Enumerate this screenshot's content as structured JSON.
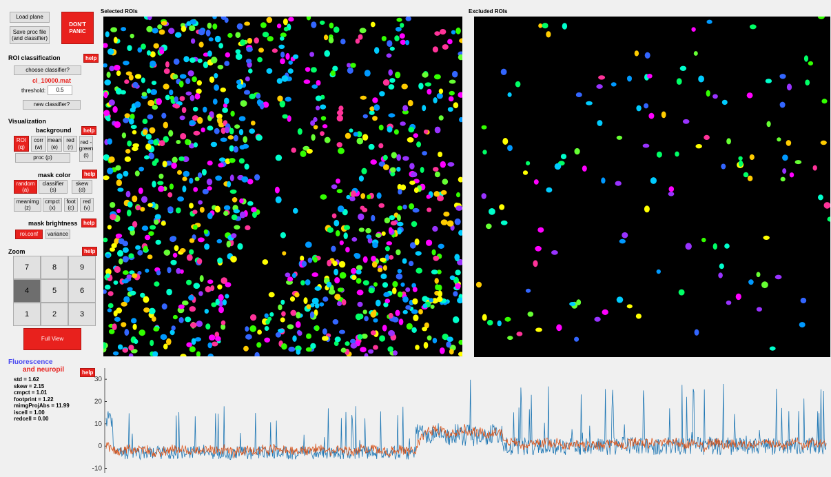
{
  "top_buttons": {
    "load_plane": "Load plane",
    "save_proc": "Save proc file\n(and classifier)",
    "dont_panic": "DON'T\nPANIC"
  },
  "roi_classification": {
    "title": "ROI classification",
    "help": "help",
    "choose_classifier": "choose classifier?",
    "classifier_file": "cl_10000.mat",
    "threshold_label": "threshold:",
    "threshold_value": "0.5",
    "new_classifier": "new classifier?"
  },
  "visualization": {
    "title": "Visualization",
    "background": {
      "title": "background",
      "help": "help",
      "buttons": [
        "ROI\n(q)",
        "corr\n(w)",
        "mean\n(e)",
        "red\n(r)",
        "red -\ngreen\n(t)",
        "proc (p)"
      ]
    },
    "mask_color": {
      "title": "mask color",
      "help": "help",
      "buttons": [
        "random\n(a)",
        "classifier\n(s)",
        "skew\n(d)",
        "meanimg\n(z)",
        "cmpct\n(x)",
        "foot\n(c)",
        "red\n(v)"
      ]
    },
    "mask_brightness": {
      "title": "mask brightness",
      "help": "help",
      "buttons": [
        "roi.conf",
        "variance"
      ]
    }
  },
  "zoom": {
    "title": "Zoom",
    "help": "help",
    "keys": [
      "7",
      "8",
      "9",
      "4",
      "5",
      "6",
      "1",
      "2",
      "3"
    ],
    "selected": "4",
    "full_view": "Full View"
  },
  "panels": {
    "selected_title": "Selected ROIs",
    "excluded_title": "Excluded ROIs"
  },
  "trace": {
    "title_line1": "Fluorescence",
    "title_line2": "and neuropil",
    "help": "help",
    "stats": [
      "std = 1.62",
      "skew = 2.15",
      "cmpct = 1.01",
      "footprint = 1.22",
      "mimgProjAbs = 11.99",
      "iscell = 1.00",
      "redcell = 0.00"
    ],
    "colors": {
      "fluorescence": "#1f77b4",
      "neuropil": "#d95319"
    }
  },
  "chart_data": {
    "type": "line",
    "title": "",
    "xlabel": "",
    "ylabel": "",
    "ylim": [
      -12,
      35
    ],
    "yticks": [
      -10,
      0,
      10,
      20,
      30
    ],
    "series": [
      {
        "name": "Fluorescence",
        "description_segments": [
          {
            "x_frac": [
              0.0,
              0.43
            ],
            "baseline": -3,
            "noise": 3,
            "peaks_max": 18
          },
          {
            "x_frac": [
              0.43,
              0.55
            ],
            "baseline": 5,
            "noise": 5,
            "peaks_max": 34
          },
          {
            "x_frac": [
              0.55,
              1.0
            ],
            "baseline": 0,
            "noise": 4,
            "peaks_max": 28
          }
        ]
      },
      {
        "name": "neuropil"
      }
    ]
  },
  "colors": {
    "accent_red": "#e8211d",
    "fluorescence_title": "#4a4af0",
    "neuropil_title": "#e8211d"
  }
}
